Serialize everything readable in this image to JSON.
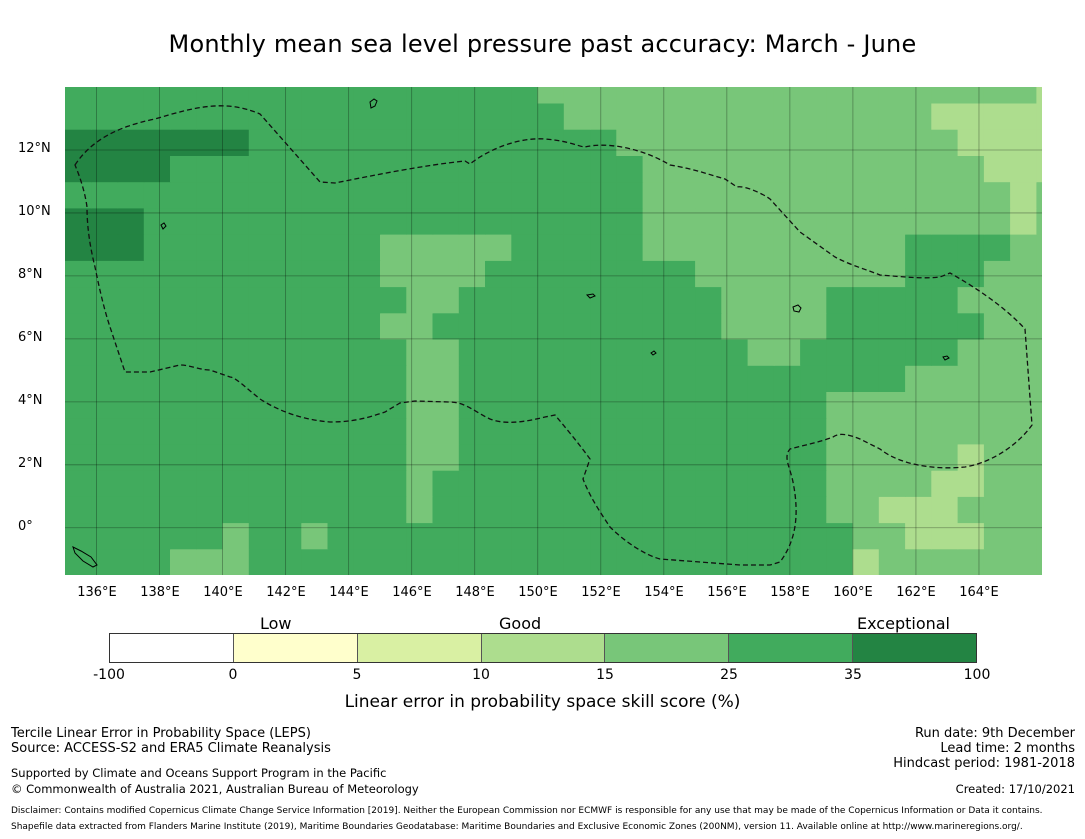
{
  "title": "Monthly mean sea level pressure past accuracy: March - June",
  "map": {
    "lat_labels": [
      "12°N",
      "10°N",
      "8°N",
      "6°N",
      "4°N",
      "2°N",
      "0°"
    ],
    "lon_labels": [
      "136°E",
      "138°E",
      "140°E",
      "142°E",
      "144°E",
      "146°E",
      "148°E",
      "150°E",
      "152°E",
      "154°E",
      "156°E",
      "158°E",
      "160°E",
      "162°E",
      "164°E"
    ],
    "lon_range": [
      135.0,
      166.0
    ],
    "lat_range": [
      -1.5,
      14.0
    ],
    "grid_lons": [
      136,
      138,
      140,
      142,
      144,
      146,
      148,
      150,
      152,
      154,
      156,
      158,
      160,
      162,
      164
    ],
    "grid_lats": [
      12,
      10,
      8,
      6,
      4,
      2,
      0
    ]
  },
  "colorbar": {
    "categories": {
      "low": "Low",
      "good": "Good",
      "exceptional": "Exceptional"
    },
    "ticks": [
      "-100",
      "0",
      "5",
      "10",
      "15",
      "25",
      "35",
      "100"
    ],
    "colors": [
      "#ffffff",
      "#ffffcc",
      "#d9f0a3",
      "#addd8e",
      "#78c679",
      "#41ab5d",
      "#238443"
    ],
    "label": "Linear error in probability space skill score (%)"
  },
  "footer": {
    "left1": "Tercile Linear Error in Probability Space (LEPS)",
    "left2": "Source: ACCESS-S2 and ERA5 Climate Reanalysis",
    "left3": "Supported by Climate and Oceans Support Program in the Pacific",
    "left4": "© Commonwealth of Australia 2021, Australian Bureau of Meteorology",
    "run_date": "Run date: 9th December",
    "lead_time": "Lead time: 2 months",
    "hindcast": "Hindcast period: 1981-2018",
    "created": "Created: 17/10/2021",
    "disclaimer1": "Disclaimer: Contains modified Copernicus Climate Change Service Information [2019]. Neither the European Commission nor ECMWF is responsible for any use that may be made of the Copernicus Information or Data it contains.",
    "disclaimer2": "Shapefile data extracted from Flanders Marine Institute (2019), Maritime Boundaries Geodatabase: Maritime Boundaries and Exclusive Economic Zones (200NM), version 11. Available online at http://www.marineregions.org/."
  },
  "score_grid": {
    "lon_start": 135.0,
    "lat_start": -1.5,
    "cell_deg": 0.833,
    "codes": "0-5 by skill category index, rows from south (bottom) to north (top)",
    "rows": [
      "5555444555555555555555555555553444444444",
      "5555554554555555555555555555554433344444",
      "5555555555555455555555555555544333444444",
      "5555555555555455555555555555544443344444",
      "5555555555555445555555555555544444344444",
      "5555555555555445555555555555544444444444",
      "5555555555555445555555555555544444444444",
      "5555555555555445555555555555555544444444",
      "5555555555555445555555555544555555444444",
      "5555555555554455555555555444455555544444",
      "5555555555555445555555555444455555444444",
      "5555555555554444555555554444444455544444",
      "6665555555554444455555444444444455554444",
      "6665555555555555555555444444444444443444",
      "5555555555555555555555444444444444443444",
      "6666555555555555555555444444444444433333",
      "6666666555555555555554444444444444333333",
      "5555555555555555555444444444444443333333",
      "5555555555555555554444444444444444444333",
      "5555555555555544444444444444443344444444",
      "5555555555555444444444444444444333333333",
      "5555555555555544444444444444444433333333",
      "5555555555555544444444444444444433333333",
      "5555555555555444444444444444443333333333",
      "5555555555553433444444444444443333333333",
      "5555555555554444444444444444443333333333",
      "5555555555554444444444444444444333333333"
    ]
  }
}
